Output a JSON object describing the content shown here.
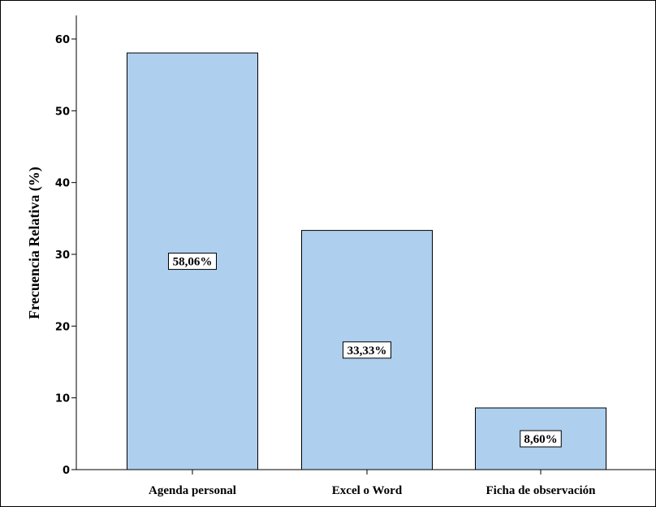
{
  "chart_data": {
    "type": "bar",
    "ylabel": "Frecuencia Relativa (%)",
    "ylim": [
      0,
      63
    ],
    "yticks": [
      0,
      10,
      20,
      30,
      40,
      50,
      60
    ],
    "categories": [
      "Agenda personal",
      "Excel o Word",
      "Ficha de observación"
    ],
    "values": [
      58.06,
      33.33,
      8.6
    ],
    "data_labels": [
      "58,06%",
      "33,33%",
      "8,60%"
    ],
    "grid": false,
    "legend": "none"
  },
  "colors": {
    "bar_fill": "#aecfee",
    "bar_stroke": "#000000",
    "axis": "#000000"
  }
}
